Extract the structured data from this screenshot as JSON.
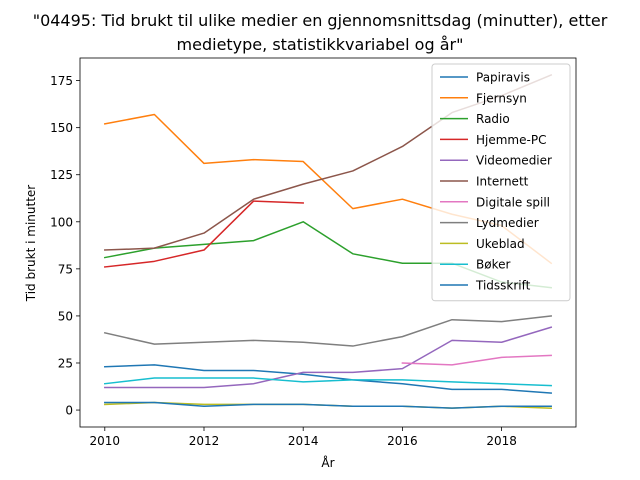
{
  "chart_data": {
    "type": "line",
    "title_line1": "\"04495: Tid brukt til ulike medier en gjennomsnittsdag (minutter), etter",
    "title_line2": "medietype, statistikkvariabel og år\"",
    "xlabel": "År",
    "ylabel": "Tid brukt i minutter",
    "xlim": [
      2009.5,
      2019.5
    ],
    "ylim": [
      -9,
      187
    ],
    "xticks": [
      2010,
      2012,
      2014,
      2016,
      2018
    ],
    "yticks": [
      0,
      25,
      50,
      75,
      100,
      125,
      150,
      175
    ],
    "grid": false,
    "legend_position": "upper right",
    "series": [
      {
        "name": "Papiravis",
        "color": "#1f77b4",
        "points": [
          [
            2010,
            23
          ],
          [
            2011,
            24
          ],
          [
            2012,
            21
          ],
          [
            2013,
            21
          ],
          [
            2014,
            19
          ],
          [
            2015,
            16
          ],
          [
            2016,
            14
          ],
          [
            2017,
            11
          ],
          [
            2018,
            11
          ],
          [
            2019,
            9
          ]
        ]
      },
      {
        "name": "Fjernsyn",
        "color": "#ff7f0e",
        "points": [
          [
            2010,
            152
          ],
          [
            2011,
            157
          ],
          [
            2012,
            131
          ],
          [
            2013,
            133
          ],
          [
            2014,
            132
          ],
          [
            2015,
            107
          ],
          [
            2016,
            112
          ],
          [
            2017,
            104
          ],
          [
            2018,
            98
          ],
          [
            2019,
            78
          ]
        ]
      },
      {
        "name": "Radio",
        "color": "#2ca02c",
        "points": [
          [
            2010,
            81
          ],
          [
            2011,
            86
          ],
          [
            2012,
            88
          ],
          [
            2013,
            90
          ],
          [
            2014,
            100
          ],
          [
            2015,
            83
          ],
          [
            2016,
            78
          ],
          [
            2017,
            78
          ],
          [
            2018,
            68
          ],
          [
            2019,
            65
          ]
        ]
      },
      {
        "name": "Hjemme-PC",
        "color": "#d62728",
        "points": [
          [
            2010,
            76
          ],
          [
            2011,
            79
          ],
          [
            2012,
            85
          ],
          [
            2013,
            111
          ],
          [
            2014,
            110
          ]
        ]
      },
      {
        "name": "Videomedier",
        "color": "#9467bd",
        "points": [
          [
            2010,
            12
          ],
          [
            2011,
            12
          ],
          [
            2012,
            12
          ],
          [
            2013,
            14
          ],
          [
            2014,
            20
          ],
          [
            2015,
            20
          ],
          [
            2016,
            22
          ],
          [
            2017,
            37
          ],
          [
            2018,
            36
          ],
          [
            2019,
            44
          ]
        ]
      },
      {
        "name": "Internett",
        "color": "#8c564b",
        "points": [
          [
            2010,
            85
          ],
          [
            2011,
            86
          ],
          [
            2012,
            94
          ],
          [
            2013,
            112
          ],
          [
            2014,
            120
          ],
          [
            2015,
            127
          ],
          [
            2016,
            140
          ],
          [
            2017,
            158
          ],
          [
            2018,
            167
          ],
          [
            2019,
            178
          ]
        ]
      },
      {
        "name": "Digitale spill",
        "color": "#e377c2",
        "points": [
          [
            2016,
            25
          ],
          [
            2017,
            24
          ],
          [
            2018,
            28
          ],
          [
            2019,
            29
          ]
        ]
      },
      {
        "name": "Lydmedier",
        "color": "#7f7f7f",
        "points": [
          [
            2010,
            41
          ],
          [
            2011,
            35
          ],
          [
            2012,
            36
          ],
          [
            2013,
            37
          ],
          [
            2014,
            36
          ],
          [
            2015,
            34
          ],
          [
            2016,
            39
          ],
          [
            2017,
            48
          ],
          [
            2018,
            47
          ],
          [
            2019,
            50
          ]
        ]
      },
      {
        "name": "Ukeblad",
        "color": "#bcbd22",
        "points": [
          [
            2010,
            3
          ],
          [
            2011,
            4
          ],
          [
            2012,
            3
          ],
          [
            2013,
            3
          ],
          [
            2014,
            3
          ],
          [
            2015,
            2
          ],
          [
            2016,
            2
          ],
          [
            2017,
            1
          ],
          [
            2018,
            2
          ],
          [
            2019,
            1
          ]
        ]
      },
      {
        "name": "Bøker",
        "color": "#17becf",
        "points": [
          [
            2010,
            14
          ],
          [
            2011,
            17
          ],
          [
            2012,
            17
          ],
          [
            2013,
            17
          ],
          [
            2014,
            15
          ],
          [
            2015,
            16
          ],
          [
            2016,
            16
          ],
          [
            2017,
            15
          ],
          [
            2018,
            14
          ],
          [
            2019,
            13
          ]
        ]
      },
      {
        "name": "Tidsskrift",
        "color": "#1f77b4",
        "points": [
          [
            2010,
            4
          ],
          [
            2011,
            4
          ],
          [
            2012,
            2
          ],
          [
            2013,
            3
          ],
          [
            2014,
            3
          ],
          [
            2015,
            2
          ],
          [
            2016,
            2
          ],
          [
            2017,
            1
          ],
          [
            2018,
            2
          ],
          [
            2019,
            2
          ]
        ]
      }
    ]
  }
}
